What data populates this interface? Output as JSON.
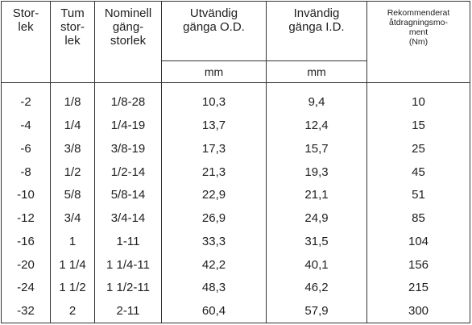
{
  "table": {
    "headers": [
      "Stor-\nlek",
      "Tum\nstor-\nlek",
      "Nominell\ngäng-\nstorlek",
      "Utvändig\ngänga O.D.",
      "Invändig\ngänga I.D.",
      "Rekommenderat\nåtdragningsmo-\nment\n(Nm)"
    ],
    "units": [
      "mm",
      "mm"
    ],
    "rows": [
      [
        "-2",
        "1/8",
        "1/8-28",
        "10,3",
        "9,4",
        "10"
      ],
      [
        "-4",
        "1/4",
        "1/4-19",
        "13,7",
        "12,4",
        "15"
      ],
      [
        "-6",
        "3/8",
        "3/8-19",
        "17,3",
        "15,7",
        "25"
      ],
      [
        "-8",
        "1/2",
        "1/2-14",
        "21,3",
        "19,3",
        "45"
      ],
      [
        "-10",
        "5/8",
        "5/8-14",
        "22,9",
        "21,1",
        "51"
      ],
      [
        "-12",
        "3/4",
        "3/4-14",
        "26,9",
        "24,9",
        "85"
      ],
      [
        "-16",
        "1",
        "1-11",
        "33,3",
        "31,5",
        "104"
      ],
      [
        "-20",
        "1 1/4",
        "1 1/4-11",
        "42,2",
        "40,1",
        "156"
      ],
      [
        "-24",
        "1 1/2",
        "1 1/2-11",
        "48,3",
        "46,2",
        "215"
      ],
      [
        "-32",
        "2",
        "2-11",
        "60,4",
        "57,9",
        "300"
      ]
    ]
  }
}
